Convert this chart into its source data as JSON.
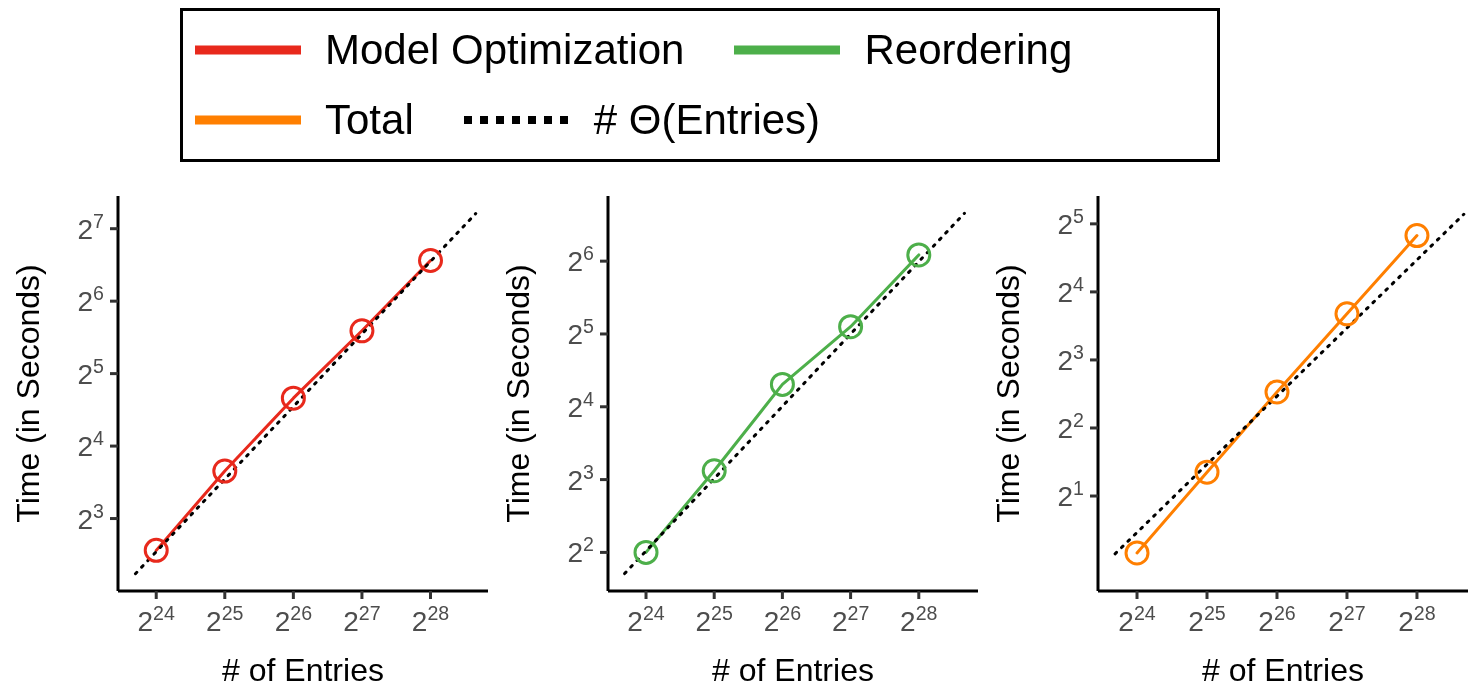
{
  "chart_data": [
    {
      "type": "line",
      "xlabel": "# of Entries",
      "ylabel": "Time (in Seconds)",
      "log": "xy",
      "legend": "top",
      "marker": "circle",
      "x": [
        16777216,
        33554432,
        67108864,
        134217728,
        268435456
      ],
      "xlim": [
        11400000,
        480000000
      ],
      "xticks": [
        {
          "value": 16777216,
          "label": "2$^{24}$"
        },
        {
          "value": 33554432,
          "label": "2$^{25}$"
        },
        {
          "value": 67108864,
          "label": "2$^{26}$"
        },
        {
          "value": 134217728,
          "label": "2$^{27}$"
        },
        {
          "value": 268435456,
          "label": "2$^{28}$"
        }
      ],
      "ylim": [
        4,
        175
      ],
      "yticks": [
        {
          "value": 8,
          "label": "2$^{3}$"
        },
        {
          "value": 16,
          "label": "2$^{4}$"
        },
        {
          "value": 32,
          "label": "2$^{5}$"
        },
        {
          "value": 64,
          "label": "2$^{6}$"
        },
        {
          "value": 128,
          "label": "2$^{7}$"
        }
      ],
      "series": [
        {
          "name": "Model Optimization",
          "color": "#e8291c",
          "values": [
            5.9,
            12.6,
            25.3,
            48.2,
            94.4
          ]
        },
        {
          "name": "# Θ(Entries)",
          "color": "#000000",
          "type": "line",
          "line_style": "dotted",
          "marker": "none",
          "x": [
            13600000,
            424000000
          ],
          "values": [
            4.72,
            148
          ]
        }
      ]
    },
    {
      "type": "line",
      "xlabel": "# of Entries",
      "ylabel": "Time (in Seconds)",
      "log": "xy",
      "legend": "top",
      "marker": "circle",
      "x": [
        16777216,
        33554432,
        67108864,
        134217728,
        268435456
      ],
      "xlim": [
        11400000,
        490000000
      ],
      "xticks": [
        {
          "value": 16777216,
          "label": "2$^{24}$"
        },
        {
          "value": 33554432,
          "label": "2$^{25}$"
        },
        {
          "value": 67108864,
          "label": "2$^{26}$"
        },
        {
          "value": 134217728,
          "label": "2$^{27}$"
        },
        {
          "value": 268435456,
          "label": "2$^{28}$"
        }
      ],
      "ylim": [
        2.77,
        119
      ],
      "yticks": [
        {
          "value": 4,
          "label": "2$^{2}$"
        },
        {
          "value": 8,
          "label": "2$^{3}$"
        },
        {
          "value": 16,
          "label": "2$^{4}$"
        },
        {
          "value": 32,
          "label": "2$^{5}$"
        },
        {
          "value": 64,
          "label": "2$^{6}$"
        }
      ],
      "series": [
        {
          "name": "Reordering",
          "color": "#4daf4a",
          "values": [
            4.0,
            8.7,
            19.8,
            34.3,
            67.9
          ]
        },
        {
          "name": "# Θ(Entries)",
          "color": "#000000",
          "type": "line",
          "line_style": "dotted",
          "marker": "none",
          "x": [
            13500000,
            427000000
          ],
          "values": [
            3.27,
            101
          ]
        }
      ]
    },
    {
      "type": "line",
      "xlabel": "# of Entries",
      "ylabel": "Time (in Seconds)",
      "log": "xy",
      "legend": "top",
      "marker": "circle",
      "x": [
        16777216,
        33554432,
        67108864,
        134217728,
        268435456
      ],
      "xlim": [
        11400000,
        445000000
      ],
      "xticks": [
        {
          "value": 16777216,
          "label": "2$^{24}$"
        },
        {
          "value": 33554432,
          "label": "2$^{25}$"
        },
        {
          "value": 67108864,
          "label": "2$^{26}$"
        },
        {
          "value": 134217728,
          "label": "2$^{27}$"
        },
        {
          "value": 268435456,
          "label": "2$^{28}$"
        }
      ],
      "ylim": [
        0.76,
        42.5
      ],
      "yticks": [
        {
          "value": 2,
          "label": "2$^{1}$"
        },
        {
          "value": 4,
          "label": "2$^{2}$"
        },
        {
          "value": 8,
          "label": "2$^{3}$"
        },
        {
          "value": 16,
          "label": "2$^{4}$"
        },
        {
          "value": 32,
          "label": "2$^{5}$"
        }
      ],
      "series": [
        {
          "name": "Total",
          "color": "#ff7f00",
          "values": [
            1.12,
            2.55,
            5.77,
            12.8,
            28.4
          ]
        },
        {
          "name": "# Θ(Entries)",
          "color": "#000000",
          "type": "line",
          "line_style": "dotted",
          "marker": "none",
          "x": [
            13500000,
            427000000
          ],
          "values": [
            1.11,
            35.3
          ]
        }
      ]
    }
  ]
}
